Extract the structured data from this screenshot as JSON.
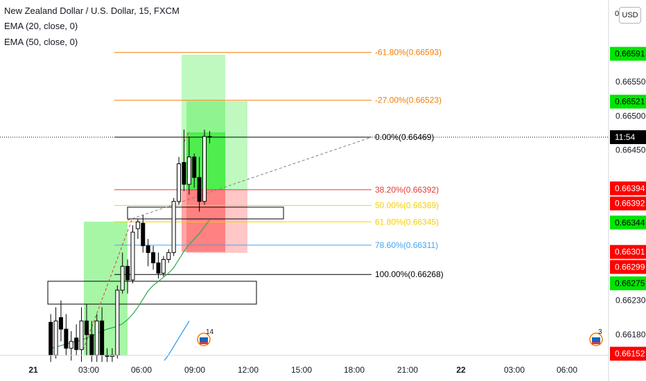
{
  "legend": {
    "symbol": "New Zealand Dollar / U.S. Dollar, 15, FXCM",
    "ema20": "EMA (20, close, 0)",
    "ema50": "EMA (50, close, 0)"
  },
  "axis_button": "USD",
  "axis_zero": "0",
  "colors": {
    "up": "#ffffff",
    "down": "#000000",
    "green_zone": "#00e600",
    "red_zone": "#ff0000",
    "ema20": "#2ea84a",
    "ema50": "#2196f3",
    "fib_orange": "#f57c00",
    "fib_red": "#e53935",
    "fib_yellow": "#f4d000",
    "fib_blue": "#42a5f5"
  },
  "chart_data": {
    "type": "candlestick",
    "ylim": [
      0.66138,
      0.66642
    ],
    "x_ticks": [
      "21",
      "03:00",
      "06:00",
      "09:00",
      "12:00",
      "15:00",
      "18:00",
      "21:00",
      "22",
      "03:00",
      "06:00"
    ],
    "y_ticks": [
      "0.66550",
      "0.66500",
      "0.66450",
      "0.66230",
      "0.66180"
    ],
    "price_tags": [
      {
        "label": "0.66591",
        "value": 0.66591,
        "color": "#00e600",
        "text_color": "#000000"
      },
      {
        "label": "0.66521",
        "value": 0.66521,
        "color": "#00e600",
        "text_color": "#000000"
      },
      {
        "label": "11:54",
        "value": 0.66469,
        "color": "#000000",
        "text_color": "#ffffff"
      },
      {
        "label": "0.66394",
        "value": 0.66394,
        "color": "#ff0000",
        "text_color": "#ffffff"
      },
      {
        "label": "0.66392",
        "value": 0.66372,
        "color": "#ff0000",
        "text_color": "#ffffff"
      },
      {
        "label": "0.66344",
        "value": 0.66344,
        "color": "#00e600",
        "text_color": "#000000"
      },
      {
        "label": "0.66301",
        "value": 0.66301,
        "color": "#ff0000",
        "text_color": "#ffffff"
      },
      {
        "label": "0.66299",
        "value": 0.66279,
        "color": "#ff0000",
        "text_color": "#ffffff"
      },
      {
        "label": "0.66275",
        "value": 0.66255,
        "color": "#00e600",
        "text_color": "#000000"
      },
      {
        "label": "0.66152",
        "value": 0.66152,
        "color": "#ff0000",
        "text_color": "#ffffff"
      }
    ],
    "fib_levels": [
      {
        "label": "-61.80%(0.66593)",
        "value": 0.66593,
        "color": "#f57c00"
      },
      {
        "label": "-27.00%(0.66523)",
        "value": 0.66523,
        "color": "#f57c00"
      },
      {
        "label": "0.00%(0.66469)",
        "value": 0.66469,
        "color": "#000000"
      },
      {
        "label": "38.20%(0.66392)",
        "value": 0.66392,
        "color": "#e53935"
      },
      {
        "label": "50.00%(0.66369)",
        "value": 0.66369,
        "color": "#f4d000"
      },
      {
        "label": "61.80%(0.66345)",
        "value": 0.66345,
        "color": "#f4d000"
      },
      {
        "label": "78.60%(0.66311)",
        "value": 0.66311,
        "color": "#42a5f5"
      },
      {
        "label": "100.00%(0.66268)",
        "value": 0.66268,
        "color": "#000000"
      }
    ],
    "current_price": 0.66469,
    "candles": [
      {
        "o": 0.66198,
        "h": 0.6621,
        "l": 0.6614,
        "c": 0.6615
      },
      {
        "o": 0.6615,
        "h": 0.6622,
        "l": 0.66145,
        "c": 0.662
      },
      {
        "o": 0.66205,
        "h": 0.6623,
        "l": 0.6617,
        "c": 0.66188
      },
      {
        "o": 0.66188,
        "h": 0.6621,
        "l": 0.6615,
        "c": 0.6616
      },
      {
        "o": 0.6616,
        "h": 0.66185,
        "l": 0.66142,
        "c": 0.6617
      },
      {
        "o": 0.66175,
        "h": 0.66195,
        "l": 0.6615,
        "c": 0.66158
      },
      {
        "o": 0.66158,
        "h": 0.6622,
        "l": 0.6614,
        "c": 0.662
      },
      {
        "o": 0.662,
        "h": 0.66225,
        "l": 0.6615,
        "c": 0.6618
      },
      {
        "o": 0.6618,
        "h": 0.662,
        "l": 0.6614,
        "c": 0.6615
      },
      {
        "o": 0.6615,
        "h": 0.6621,
        "l": 0.6614,
        "c": 0.662
      },
      {
        "o": 0.662,
        "h": 0.6622,
        "l": 0.6614,
        "c": 0.6615
      },
      {
        "o": 0.6615,
        "h": 0.6616,
        "l": 0.6614,
        "c": 0.66148
      },
      {
        "o": 0.66148,
        "h": 0.6616,
        "l": 0.6614,
        "c": 0.6615
      },
      {
        "o": 0.6615,
        "h": 0.66252,
        "l": 0.66145,
        "c": 0.66245
      },
      {
        "o": 0.66245,
        "h": 0.663,
        "l": 0.6624,
        "c": 0.6628
      },
      {
        "o": 0.6628,
        "h": 0.6629,
        "l": 0.6624,
        "c": 0.6626
      },
      {
        "o": 0.6626,
        "h": 0.6634,
        "l": 0.66255,
        "c": 0.6633
      },
      {
        "o": 0.66335,
        "h": 0.6635,
        "l": 0.6632,
        "c": 0.66345
      },
      {
        "o": 0.66343,
        "h": 0.66355,
        "l": 0.663,
        "c": 0.6631
      },
      {
        "o": 0.6631,
        "h": 0.6632,
        "l": 0.6628,
        "c": 0.663
      },
      {
        "o": 0.663,
        "h": 0.6631,
        "l": 0.66275,
        "c": 0.66285
      },
      {
        "o": 0.66285,
        "h": 0.663,
        "l": 0.66262,
        "c": 0.6627
      },
      {
        "o": 0.6627,
        "h": 0.66295,
        "l": 0.66265,
        "c": 0.6629
      },
      {
        "o": 0.6629,
        "h": 0.66305,
        "l": 0.66285,
        "c": 0.663
      },
      {
        "o": 0.663,
        "h": 0.6638,
        "l": 0.66295,
        "c": 0.66375
      },
      {
        "o": 0.66375,
        "h": 0.6644,
        "l": 0.6637,
        "c": 0.6643
      },
      {
        "o": 0.66432,
        "h": 0.6648,
        "l": 0.6639,
        "c": 0.664
      },
      {
        "o": 0.664,
        "h": 0.6647,
        "l": 0.66385,
        "c": 0.6644
      },
      {
        "o": 0.6644,
        "h": 0.66445,
        "l": 0.66395,
        "c": 0.6641
      },
      {
        "o": 0.6641,
        "h": 0.6644,
        "l": 0.6636,
        "c": 0.66375
      },
      {
        "o": 0.66375,
        "h": 0.6648,
        "l": 0.6637,
        "c": 0.6647
      },
      {
        "o": 0.6647,
        "h": 0.66478,
        "l": 0.6646,
        "c": 0.66469
      }
    ],
    "ema20": [
      0.6616,
      0.66162,
      0.66164,
      0.66166,
      0.66168,
      0.6617,
      0.66172,
      0.66175,
      0.66178,
      0.66181,
      0.66185,
      0.66188,
      0.6619,
      0.66192,
      0.66196,
      0.66202,
      0.6621,
      0.6622,
      0.66232,
      0.66244,
      0.66252,
      0.66258,
      0.66264,
      0.6627,
      0.66278,
      0.6629,
      0.66302,
      0.66312,
      0.6632,
      0.66328,
      0.66338,
      0.66348
    ],
    "ema50_segment": [
      0.66142,
      0.6615,
      0.6616,
      0.6617,
      0.6618,
      0.6619,
      0.662
    ],
    "markers": [
      {
        "label": "14"
      },
      {
        "label": "3"
      }
    ]
  }
}
